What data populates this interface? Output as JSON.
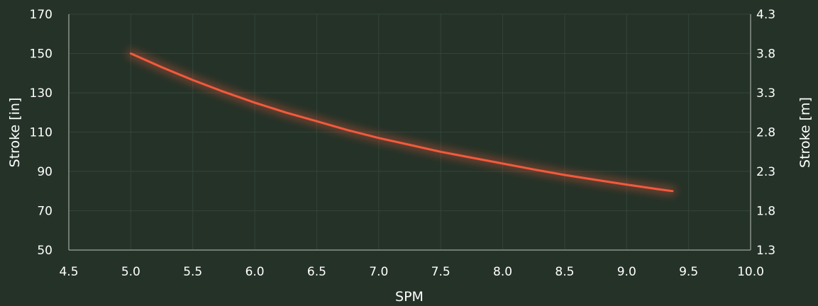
{
  "chart_data": {
    "type": "line",
    "title": "",
    "xlabel": "SPM",
    "ylabel": "Stroke [in]",
    "y2label": "Stroke [m]",
    "xlim": [
      4.5,
      10.0
    ],
    "ylim": [
      50,
      170
    ],
    "y2lim": [
      1.3,
      4.3
    ],
    "xticks": [
      "4.5",
      "5.0",
      "5.5",
      "6.0",
      "6.5",
      "7.0",
      "7.5",
      "8.0",
      "8.5",
      "9.0",
      "9.5",
      "10.0"
    ],
    "yticks": [
      "50",
      "70",
      "90",
      "110",
      "130",
      "150",
      "170"
    ],
    "y2ticks": [
      "1.3",
      "1.8",
      "2.3",
      "2.8",
      "3.3",
      "3.8",
      "4.3"
    ],
    "grid": true,
    "legend": "none",
    "series": [
      {
        "x": [
          5.0,
          5.25,
          5.5,
          5.75,
          6.0,
          6.25,
          6.5,
          6.75,
          7.0,
          7.25,
          7.5,
          7.75,
          8.0,
          8.25,
          8.5,
          8.75,
          9.0,
          9.25,
          9.37
        ],
        "y": [
          150,
          143,
          136.5,
          130.5,
          125,
          120,
          115.5,
          111,
          107,
          103.5,
          100,
          97,
          94,
          91,
          88.2,
          85.7,
          83.3,
          81,
          80
        ],
        "color": "#f25a3c"
      }
    ]
  }
}
